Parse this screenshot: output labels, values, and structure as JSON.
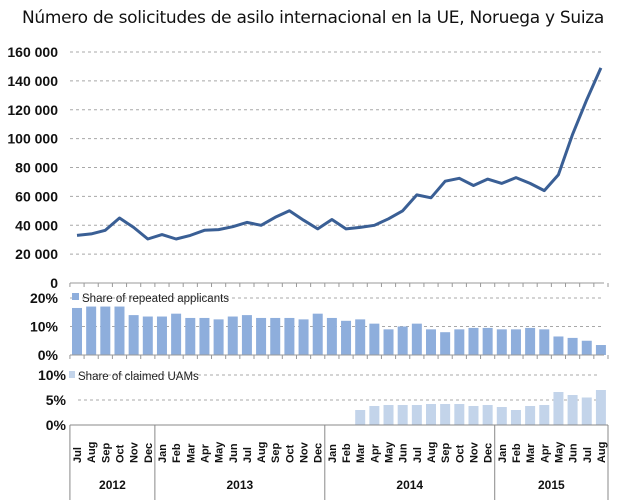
{
  "chart_data": [
    {
      "type": "line",
      "title": "Número de solicitudes de asilo internacional en la UE, Noruega y Suiza",
      "xlabel": "",
      "ylabel": "",
      "ylim": [
        0,
        160000
      ],
      "yticks": [
        "0",
        "20 000",
        "40 000",
        "60 000",
        "80 000",
        "100 000",
        "120 000",
        "140 000",
        "160 000"
      ],
      "grid": true,
      "color": "#3a5f95",
      "categories": [
        "Jul 2012",
        "Aug 2012",
        "Sep 2012",
        "Oct 2012",
        "Nov 2012",
        "Dec 2012",
        "Jan 2013",
        "Feb 2013",
        "Mar 2013",
        "Apr 2013",
        "May 2013",
        "Jun 2013",
        "Jul 2013",
        "Aug 2013",
        "Sep 2013",
        "Oct 2013",
        "Nov 2013",
        "Dec 2013",
        "Jan 2014",
        "Feb 2014",
        "Mar 2014",
        "Apr 2014",
        "May 2014",
        "Jun 2014",
        "Jul 2014",
        "Aug 2014",
        "Sep 2014",
        "Oct 2014",
        "Nov 2014",
        "Dec 2014",
        "Jan 2015",
        "Feb 2015",
        "Mar 2015",
        "Apr 2015",
        "May 2015",
        "Jun 2015",
        "Jul 2015",
        "Aug 2015"
      ],
      "values": [
        33000,
        34000,
        36500,
        45000,
        38500,
        30500,
        33500,
        30500,
        33000,
        36500,
        37000,
        39000,
        42000,
        40000,
        45500,
        50000,
        43500,
        37500,
        44000,
        37500,
        38500,
        40000,
        44500,
        50000,
        61000,
        59000,
        70500,
        72500,
        67500,
        72000,
        69000,
        73000,
        69000,
        64000,
        75000,
        103000,
        127000,
        149000
      ]
    },
    {
      "type": "bar",
      "legend": "Share of repeated applicants",
      "ylim": [
        0,
        20
      ],
      "yticks": [
        "0%",
        "10%",
        "20%"
      ],
      "color": "#8eaedc",
      "values": [
        16.5,
        17,
        17,
        17,
        14,
        13.5,
        13.5,
        14.5,
        13,
        13,
        12.5,
        13.5,
        14,
        13,
        13,
        13,
        12.5,
        14.5,
        13,
        12,
        12.5,
        11,
        9,
        10,
        11,
        9,
        8,
        9,
        9.5,
        9.5,
        9,
        9,
        9.5,
        9,
        6.5,
        6,
        5,
        3.5
      ]
    },
    {
      "type": "bar",
      "legend": "Share of claimed UAMs",
      "ylim": [
        0,
        10
      ],
      "yticks": [
        "0%",
        "5%",
        "10%"
      ],
      "color": "#c3d4ea",
      "values": [
        null,
        null,
        null,
        null,
        null,
        null,
        null,
        null,
        null,
        null,
        null,
        null,
        null,
        null,
        null,
        null,
        null,
        null,
        null,
        null,
        3,
        3.8,
        4,
        4,
        4,
        4.2,
        4.2,
        4.2,
        3.8,
        4,
        3.6,
        3,
        3.8,
        4,
        6.6,
        6,
        5.5,
        7
      ]
    }
  ],
  "axis": {
    "months": [
      "Jul",
      "Aug",
      "Sep",
      "Oct",
      "Nov",
      "Dec",
      "Jan",
      "Feb",
      "Mar",
      "Apr",
      "May",
      "Jun",
      "Jul",
      "Aug",
      "Sep",
      "Oct",
      "Nov",
      "Dec",
      "Jan",
      "Feb",
      "Mar",
      "Apr",
      "May",
      "Jun",
      "Jul",
      "Aug",
      "Sep",
      "Oct",
      "Nov",
      "Dec",
      "Jan",
      "Feb",
      "Mar",
      "Apr",
      "May",
      "Jun",
      "Jul",
      "Aug"
    ],
    "years": [
      {
        "label": "2012",
        "start": 0,
        "end": 5
      },
      {
        "label": "2013",
        "start": 6,
        "end": 17
      },
      {
        "label": "2014",
        "start": 18,
        "end": 29
      },
      {
        "label": "2015",
        "start": 30,
        "end": 37
      }
    ]
  }
}
